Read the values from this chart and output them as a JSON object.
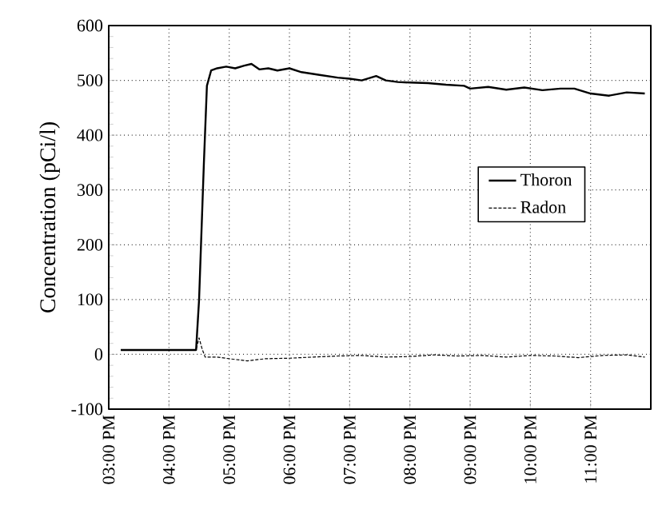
{
  "chart_data": {
    "type": "line",
    "ylabel": "Concentration (pCi/l)",
    "xlim": [
      15,
      24
    ],
    "ylim": [
      -100,
      600
    ],
    "xticks": [
      {
        "value": 15,
        "label": "03:00 PM"
      },
      {
        "value": 16,
        "label": "04:00 PM"
      },
      {
        "value": 17,
        "label": "05:00 PM"
      },
      {
        "value": 18,
        "label": "06:00 PM"
      },
      {
        "value": 19,
        "label": "07:00 PM"
      },
      {
        "value": 20,
        "label": "08:00 PM"
      },
      {
        "value": 21,
        "label": "09:00 PM"
      },
      {
        "value": 22,
        "label": "10:00 PM"
      },
      {
        "value": 23,
        "label": "11:00 PM"
      }
    ],
    "yticks": [
      -100,
      0,
      100,
      200,
      300,
      400,
      500,
      600
    ],
    "grid": true,
    "legend": "right",
    "marker": "none",
    "series": [
      {
        "name": "Thoron",
        "color": "#000000",
        "line_style": "solid",
        "x": [
          15.2,
          16.45,
          16.5,
          16.58,
          16.63,
          16.7,
          16.8,
          16.95,
          17.1,
          17.25,
          17.37,
          17.5,
          17.65,
          17.8,
          18.0,
          18.2,
          18.5,
          18.8,
          19.0,
          19.2,
          19.44,
          19.6,
          19.8,
          20.0,
          20.3,
          20.6,
          20.9,
          21.0,
          21.3,
          21.6,
          21.9,
          22.2,
          22.5,
          22.73,
          23.0,
          23.3,
          23.6,
          23.9
        ],
        "values": [
          8,
          8,
          100,
          350,
          490,
          518,
          522,
          525,
          522,
          527,
          530,
          520,
          522,
          518,
          522,
          515,
          510,
          505,
          503,
          500,
          508,
          500,
          497,
          496,
          495,
          492,
          490,
          485,
          488,
          483,
          487,
          482,
          485,
          485,
          476,
          472,
          478,
          476
        ]
      },
      {
        "name": "Radon",
        "color": "#000000",
        "line_style": "dashed",
        "x": [
          15.2,
          16.45,
          16.5,
          16.55,
          16.6,
          16.8,
          17.0,
          17.3,
          17.6,
          18.0,
          18.4,
          18.8,
          19.2,
          19.6,
          20.0,
          20.4,
          20.8,
          21.2,
          21.6,
          22.0,
          22.4,
          22.8,
          23.2,
          23.6,
          23.9
        ],
        "values": [
          8,
          8,
          30,
          10,
          -5,
          -5,
          -8,
          -12,
          -8,
          -7,
          -5,
          -3,
          -2,
          -5,
          -4,
          -1,
          -3,
          -2,
          -5,
          -2,
          -3,
          -6,
          -2,
          -1,
          -5
        ]
      }
    ]
  }
}
